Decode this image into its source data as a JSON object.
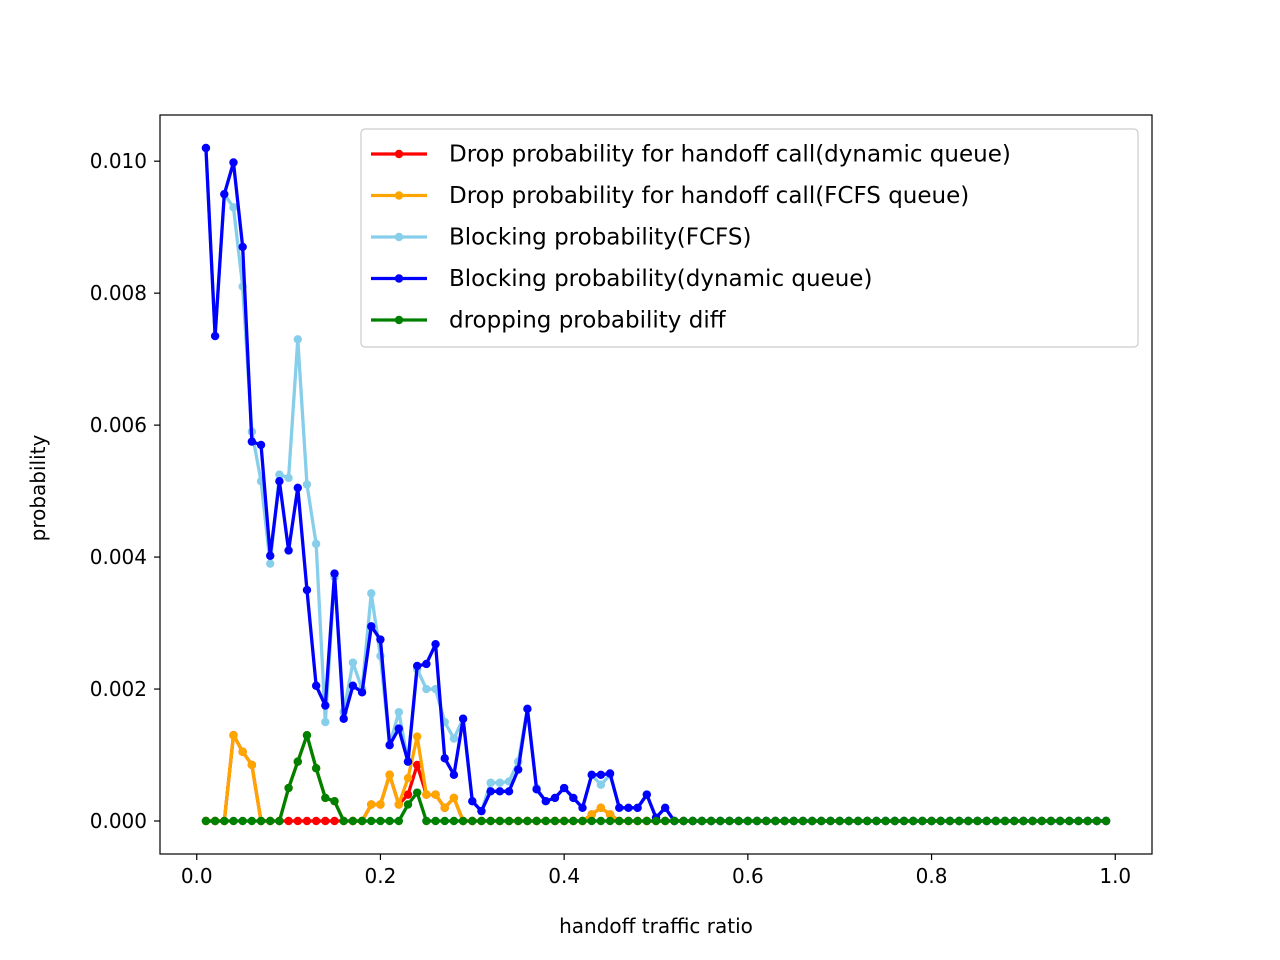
{
  "chart_data": {
    "type": "line",
    "xlabel": "handoff traffic ratio",
    "ylabel": "probability",
    "xlim": [
      -0.04,
      1.04
    ],
    "ylim": [
      -0.0005,
      0.0107
    ],
    "xticks": [
      0.0,
      0.2,
      0.4,
      0.6,
      0.8,
      1.0
    ],
    "xtick_labels": [
      "0.0",
      "0.2",
      "0.4",
      "0.6",
      "0.8",
      "1.0"
    ],
    "yticks": [
      0.0,
      0.002,
      0.004,
      0.006,
      0.008,
      0.01
    ],
    "ytick_labels": [
      "0.000",
      "0.002",
      "0.004",
      "0.006",
      "0.008",
      "0.010"
    ],
    "grid": false,
    "legend_position": "top-right",
    "x": [
      0.01,
      0.02,
      0.03,
      0.04,
      0.05,
      0.06,
      0.07,
      0.08,
      0.09,
      0.1,
      0.11,
      0.12,
      0.13,
      0.14,
      0.15,
      0.16,
      0.17,
      0.18,
      0.19,
      0.2,
      0.21,
      0.22,
      0.23,
      0.24,
      0.25,
      0.26,
      0.27,
      0.28,
      0.29,
      0.3,
      0.31,
      0.32,
      0.33,
      0.34,
      0.35,
      0.36,
      0.37,
      0.38,
      0.39,
      0.4,
      0.41,
      0.42,
      0.43,
      0.44,
      0.45,
      0.46,
      0.47,
      0.48,
      0.49,
      0.5,
      0.51,
      0.52,
      0.53,
      0.54,
      0.55,
      0.56,
      0.57,
      0.58,
      0.59,
      0.6,
      0.61,
      0.62,
      0.63,
      0.64,
      0.65,
      0.66,
      0.67,
      0.68,
      0.69,
      0.7,
      0.71,
      0.72,
      0.73,
      0.74,
      0.75,
      0.76,
      0.77,
      0.78,
      0.79,
      0.8,
      0.81,
      0.82,
      0.83,
      0.84,
      0.85,
      0.86,
      0.87,
      0.88,
      0.89,
      0.9,
      0.91,
      0.92,
      0.93,
      0.94,
      0.95,
      0.96,
      0.97,
      0.98,
      0.99
    ],
    "series": [
      {
        "name": "Drop probability for handoff call(dynamic queue)",
        "color": "#ff0000",
        "values": [
          0,
          0,
          0,
          0.0013,
          0.00105,
          0.00085,
          0,
          0,
          0,
          0,
          0,
          0,
          0,
          0,
          0,
          0,
          0,
          0,
          0.00025,
          0.00025,
          0.0007,
          0.00025,
          0.0004,
          0.00085,
          0.0004,
          0.0004,
          0.0002,
          0.00035,
          0,
          0,
          0,
          0,
          0,
          0,
          0,
          0,
          0,
          0,
          0,
          0,
          0,
          0,
          0.0001,
          0.0002,
          0.0001,
          0,
          0,
          0,
          0,
          0,
          0,
          0,
          0,
          0,
          0,
          0,
          0,
          0,
          0,
          0,
          0,
          0,
          0,
          0,
          0,
          0,
          0,
          0,
          0,
          0,
          0,
          0,
          0,
          0,
          0,
          0,
          0,
          0,
          0,
          0,
          0,
          0,
          0,
          0,
          0,
          0,
          0,
          0,
          0,
          0,
          0,
          0,
          0,
          0,
          0,
          0,
          0,
          0,
          0
        ]
      },
      {
        "name": "Drop probability for handoff call(FCFS queue)",
        "color": "#ffa500",
        "values": [
          0,
          0,
          0,
          0.0013,
          0.00105,
          0.00085,
          0,
          0,
          0,
          0.0005,
          0.0009,
          0.0013,
          0.0008,
          0.00035,
          0.0003,
          0,
          0,
          0,
          0.00025,
          0.00025,
          0.0007,
          0.00025,
          0.00065,
          0.00128,
          0.0004,
          0.0004,
          0.0002,
          0.00035,
          0,
          0,
          0,
          0,
          0,
          0,
          0,
          0,
          0,
          0,
          0,
          0,
          0,
          0,
          0.0001,
          0.0002,
          0.0001,
          0,
          0,
          0,
          0,
          0,
          0,
          0,
          0,
          0,
          0,
          0,
          0,
          0,
          0,
          0,
          0,
          0,
          0,
          0,
          0,
          0,
          0,
          0,
          0,
          0,
          0,
          0,
          0,
          0,
          0,
          0,
          0,
          0,
          0,
          0,
          0,
          0,
          0,
          0,
          0,
          0,
          0,
          0,
          0,
          0,
          0,
          0,
          0,
          0,
          0,
          0,
          0,
          0,
          0
        ]
      },
      {
        "name": "Blocking probability(FCFS)",
        "color": "#87ceeb",
        "values": [
          0.0102,
          0.00735,
          0.0095,
          0.0093,
          0.0081,
          0.0059,
          0.00515,
          0.0039,
          0.00525,
          0.0052,
          0.0073,
          0.0051,
          0.0042,
          0.0015,
          0.0037,
          0.00165,
          0.0024,
          0.002,
          0.00345,
          0.0025,
          0.00115,
          0.00165,
          0.0009,
          0.0023,
          0.002,
          0.002,
          0.0015,
          0.00125,
          0.00155,
          0.0003,
          0.00015,
          0.00058,
          0.00058,
          0.0006,
          0.0009,
          0.0017,
          0.0005,
          0.0003,
          0.00035,
          0.0005,
          0.00035,
          0.0002,
          0.0007,
          0.00055,
          0.0007,
          0.0002,
          0.0002,
          0.0002,
          0.0004,
          5e-05,
          0.0002,
          0,
          0,
          0,
          0,
          0,
          0,
          0,
          0,
          0,
          0,
          0,
          0,
          0,
          0,
          0,
          0,
          0,
          0,
          0,
          0,
          0,
          0,
          0,
          0,
          0,
          0,
          0,
          0,
          0,
          0,
          0,
          0,
          0,
          0,
          0,
          0,
          0,
          0,
          0,
          0,
          0,
          0,
          0,
          0,
          0,
          0,
          0,
          0
        ]
      },
      {
        "name": "Blocking probability(dynamic queue)",
        "color": "#0000ff",
        "values": [
          0.0102,
          0.00735,
          0.0095,
          0.00998,
          0.0087,
          0.00575,
          0.0057,
          0.00402,
          0.00515,
          0.0041,
          0.00505,
          0.0035,
          0.00205,
          0.00175,
          0.00375,
          0.00155,
          0.00205,
          0.00195,
          0.00295,
          0.00275,
          0.00115,
          0.0014,
          0.0009,
          0.00235,
          0.00238,
          0.00268,
          0.00095,
          0.0007,
          0.00155,
          0.0003,
          0.00015,
          0.00045,
          0.00045,
          0.00045,
          0.00078,
          0.0017,
          0.00048,
          0.0003,
          0.00035,
          0.0005,
          0.00035,
          0.0002,
          0.0007,
          0.0007,
          0.00072,
          0.0002,
          0.0002,
          0.0002,
          0.0004,
          5e-05,
          0.0002,
          0,
          0,
          0,
          0,
          0,
          0,
          0,
          0,
          0,
          0,
          0,
          0,
          0,
          0,
          0,
          0,
          0,
          0,
          0,
          0,
          0,
          0,
          0,
          0,
          0,
          0,
          0,
          0,
          0,
          0,
          0,
          0,
          0,
          0,
          0,
          0,
          0,
          0,
          0,
          0,
          0,
          0,
          0,
          0,
          0,
          0,
          0,
          0
        ]
      },
      {
        "name": "dropping probability diff",
        "color": "#008000",
        "values": [
          0,
          0,
          0,
          0,
          0,
          0,
          0,
          0,
          0,
          0.0005,
          0.0009,
          0.0013,
          0.0008,
          0.00035,
          0.0003,
          0,
          0,
          0,
          0,
          0,
          0,
          0,
          0.00025,
          0.00043,
          0,
          0,
          0,
          0,
          0,
          0,
          0,
          0,
          0,
          0,
          0,
          0,
          0,
          0,
          0,
          0,
          0,
          0,
          0,
          0,
          0,
          0,
          0,
          0,
          0,
          0,
          0,
          0,
          0,
          0,
          0,
          0,
          0,
          0,
          0,
          0,
          0,
          0,
          0,
          0,
          0,
          0,
          0,
          0,
          0,
          0,
          0,
          0,
          0,
          0,
          0,
          0,
          0,
          0,
          0,
          0,
          0,
          0,
          0,
          0,
          0,
          0,
          0,
          0,
          0,
          0,
          0,
          0,
          0,
          0,
          0,
          0,
          0,
          0,
          0
        ]
      }
    ]
  }
}
